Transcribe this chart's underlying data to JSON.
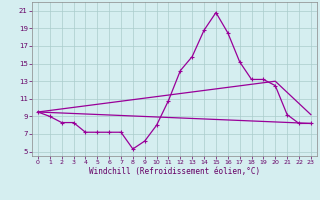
{
  "xlabel": "Windchill (Refroidissement éolien,°C)",
  "background_color": "#d5eef0",
  "line_color": "#990099",
  "grid_color": "#aacccc",
  "xlim": [
    -0.5,
    23.5
  ],
  "ylim": [
    4.5,
    22
  ],
  "xticks": [
    0,
    1,
    2,
    3,
    4,
    5,
    6,
    7,
    8,
    9,
    10,
    11,
    12,
    13,
    14,
    15,
    16,
    17,
    18,
    19,
    20,
    21,
    22,
    23
  ],
  "yticks": [
    5,
    7,
    9,
    11,
    13,
    15,
    17,
    19,
    21
  ],
  "line1_x": [
    0,
    1,
    2,
    3,
    4,
    5,
    6,
    7,
    8,
    9,
    10,
    11,
    12,
    13,
    14,
    15,
    16,
    17,
    18,
    19,
    20,
    21,
    22,
    23
  ],
  "line1_y": [
    9.5,
    9.0,
    8.3,
    8.3,
    7.2,
    7.2,
    7.2,
    7.2,
    5.3,
    6.2,
    8.0,
    10.8,
    14.2,
    15.8,
    18.8,
    20.8,
    18.5,
    15.2,
    13.2,
    13.2,
    12.5,
    9.2,
    8.2,
    8.2
  ],
  "line2_x": [
    0,
    23
  ],
  "line2_y": [
    9.5,
    8.2
  ],
  "line3_x": [
    0,
    20,
    23
  ],
  "line3_y": [
    9.5,
    13.0,
    9.2
  ]
}
